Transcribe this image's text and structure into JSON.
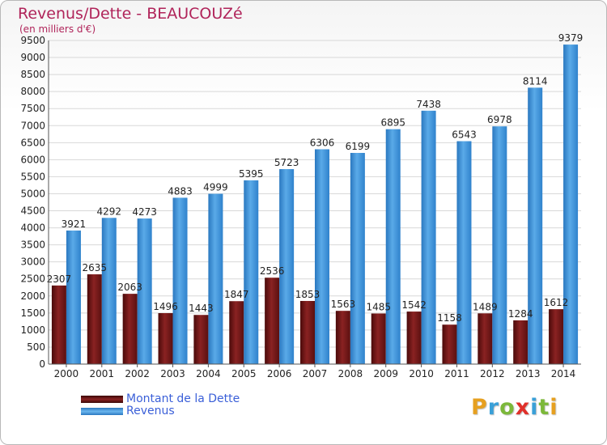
{
  "header": {
    "title": "Revenus/Dette - BEAUCOUZé",
    "subtitle": "(en milliers d'€)"
  },
  "logo": {
    "letters": [
      "P",
      "r",
      "o",
      "x",
      "i",
      "t",
      "i"
    ],
    "colors": [
      "#e6a020",
      "#3aa0d8",
      "#7cb83a",
      "#e0302a",
      "#3aa0d8",
      "#7cb83a",
      "#e6a020"
    ]
  },
  "chart_data": {
    "type": "bar",
    "title": "Revenus/Dette - BEAUCOUZé",
    "subtitle": "(en milliers d'€)",
    "categories": [
      "2000",
      "2001",
      "2002",
      "2003",
      "2004",
      "2005",
      "2006",
      "2007",
      "2008",
      "2009",
      "2010",
      "2011",
      "2012",
      "2013",
      "2014"
    ],
    "ylim": [
      0,
      9500
    ],
    "yticks": [
      0,
      500,
      1000,
      1500,
      2000,
      2500,
      3000,
      3500,
      4000,
      4500,
      5000,
      5500,
      6000,
      6500,
      7000,
      7500,
      8000,
      8500,
      9000,
      9500
    ],
    "grid": true,
    "legend_position": "bottom-left",
    "series": [
      {
        "name": "Montant de la Dette",
        "color": "#7a1a1a",
        "values": [
          2307,
          2635,
          2063,
          1496,
          1443,
          1847,
          2536,
          1853,
          1563,
          1485,
          1542,
          1158,
          1489,
          1284,
          1612
        ],
        "labels": [
          "2307",
          "2635",
          "2063",
          "1496",
          "1443",
          "1847",
          "2536",
          "1853",
          "1563",
          "1485",
          "1542",
          "1158",
          "1489",
          "1284",
          "1612"
        ]
      },
      {
        "name": "Revenus",
        "color": "#3d95dc",
        "values": [
          3921,
          4292,
          4273,
          4883,
          4999,
          5395,
          5723,
          6306,
          6199,
          6895,
          7438,
          6543,
          6978,
          8114,
          9379
        ],
        "labels": [
          "3921",
          "4292",
          "4273",
          "4883",
          "4999",
          "5395",
          "5723",
          "6306",
          "6199",
          "6895",
          "7438",
          "6543",
          "6978",
          "8114",
          "9379"
        ]
      }
    ]
  }
}
